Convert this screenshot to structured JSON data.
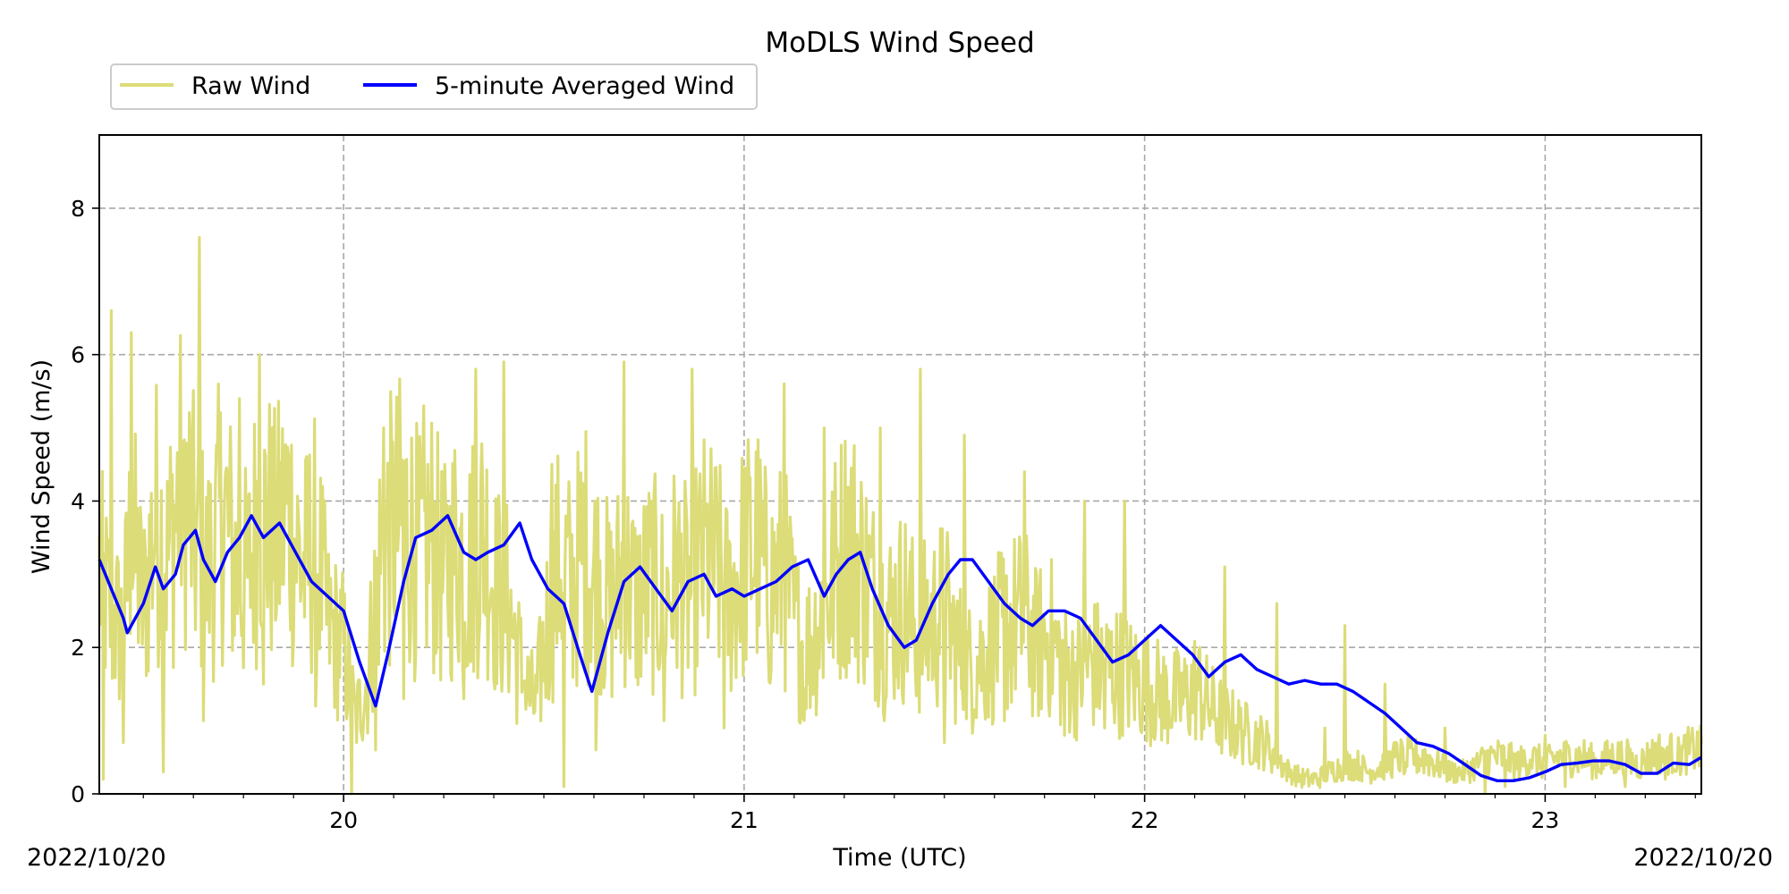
{
  "chart_data": {
    "type": "line",
    "title": "MoDLS Wind Speed",
    "xlabel": "Time (UTC)",
    "ylabel": "Wind Speed (m/s)",
    "xlim": [
      19.39,
      23.39
    ],
    "ylim": [
      0,
      9
    ],
    "x_ticks": [
      20,
      21,
      22,
      23
    ],
    "x_tick_labels": [
      "20",
      "21",
      "22",
      "23"
    ],
    "y_ticks": [
      0,
      2,
      4,
      6,
      8
    ],
    "y_tick_labels": [
      "0",
      "2",
      "4",
      "6",
      "8"
    ],
    "date_left": "2022/10/20",
    "date_right": "2022/10/20",
    "grid": true,
    "legend_position": "top-left",
    "series": [
      {
        "name": "Raw Wind",
        "color": "#DCDC78",
        "x": [
          19.39,
          19.42,
          19.45,
          19.47,
          19.5,
          19.53,
          19.56,
          19.6,
          19.63,
          19.66,
          19.7,
          19.73,
          19.76,
          19.79,
          19.83,
          19.86,
          19.9,
          19.93,
          19.96,
          20.0,
          20.03,
          20.06,
          20.09,
          20.12,
          20.15,
          20.19,
          20.22,
          20.25,
          20.28,
          20.31,
          20.35,
          20.38,
          20.41,
          20.45,
          20.48,
          20.51,
          20.54,
          20.57,
          20.6,
          20.63,
          20.67,
          20.7,
          20.73,
          20.77,
          20.8,
          20.83,
          20.86,
          20.9,
          20.93,
          20.96,
          21.0,
          21.03,
          21.06,
          21.1,
          21.13,
          21.16,
          21.2,
          21.23,
          21.26,
          21.3,
          21.33,
          21.36,
          21.4,
          21.43,
          21.46,
          21.5,
          21.53,
          21.56,
          21.6,
          21.63,
          21.66,
          21.7,
          21.73,
          21.76,
          21.8,
          21.83,
          21.86,
          21.9,
          21.93,
          21.96,
          22.0,
          22.03,
          22.06,
          22.1,
          22.13,
          22.16,
          22.2,
          22.23,
          22.26,
          22.3,
          22.33,
          22.36,
          22.4,
          22.43,
          22.46,
          22.5,
          22.53,
          22.56,
          22.6,
          22.63,
          22.66,
          22.7,
          22.73,
          22.76,
          22.8,
          22.83,
          22.86,
          22.9,
          22.93,
          22.96,
          23.0,
          23.03,
          23.06,
          23.1,
          23.13,
          23.16,
          23.2,
          23.23,
          23.26,
          23.3,
          23.33,
          23.36,
          23.39
        ],
        "values": [
          3.0,
          2.4,
          2.2,
          3.6,
          2.5,
          3.8,
          3.2,
          4.4,
          3.4,
          3.0,
          3.9,
          3.1,
          2.9,
          4.0,
          3.4,
          3.9,
          3.0,
          3.5,
          2.3,
          2.0,
          1.0,
          1.6,
          3.2,
          3.6,
          3.8,
          3.2,
          3.5,
          2.9,
          3.4,
          3.1,
          3.6,
          2.8,
          2.6,
          1.5,
          1.2,
          2.4,
          3.2,
          2.8,
          3.4,
          3.0,
          2.5,
          3.1,
          2.6,
          2.9,
          2.6,
          3.0,
          2.7,
          3.2,
          3.1,
          2.6,
          3.2,
          3.4,
          2.8,
          3.0,
          2.2,
          2.0,
          2.5,
          3.1,
          3.5,
          3.0,
          2.6,
          2.4,
          2.6,
          2.2,
          2.3,
          2.5,
          2.0,
          1.7,
          1.9,
          2.1,
          2.3,
          2.4,
          2.0,
          2.2,
          1.7,
          1.6,
          1.8,
          1.7,
          1.7,
          1.6,
          1.5,
          1.4,
          1.3,
          1.3,
          1.5,
          1.2,
          1.0,
          0.9,
          0.8,
          0.7,
          0.5,
          0.3,
          0.2,
          0.2,
          0.3,
          0.4,
          0.4,
          0.3,
          0.4,
          0.5,
          0.5,
          0.5,
          0.4,
          0.3,
          0.3,
          0.4,
          0.5,
          0.5,
          0.4,
          0.5,
          0.4,
          0.5,
          0.5,
          0.5,
          0.4,
          0.5,
          0.5,
          0.4,
          0.5,
          0.6,
          0.5,
          0.6,
          0.6
        ],
        "peaks": [
          [
            19.42,
            6.6
          ],
          [
            19.47,
            6.3
          ],
          [
            19.6,
            4.8
          ],
          [
            19.64,
            7.6
          ],
          [
            19.74,
            5.4
          ],
          [
            19.79,
            6.0
          ],
          [
            20.1,
            5.0
          ],
          [
            20.2,
            5.3
          ],
          [
            20.33,
            5.8
          ],
          [
            20.4,
            5.9
          ],
          [
            20.52,
            4.5
          ],
          [
            20.7,
            5.9
          ],
          [
            20.87,
            5.8
          ],
          [
            21.1,
            5.6
          ],
          [
            21.2,
            5.0
          ],
          [
            21.34,
            5.0
          ],
          [
            21.44,
            5.8
          ],
          [
            21.55,
            4.9
          ],
          [
            21.7,
            4.4
          ],
          [
            21.85,
            4.0
          ],
          [
            21.95,
            4.0
          ],
          [
            22.05,
            3.4
          ],
          [
            22.2,
            3.1
          ],
          [
            22.33,
            2.6
          ],
          [
            22.5,
            2.3
          ],
          [
            22.6,
            1.5
          ],
          [
            22.75,
            0.9
          ],
          [
            22.85,
            0.7
          ],
          [
            23.0,
            0.8
          ],
          [
            23.2,
            0.7
          ],
          [
            23.35,
            0.8
          ]
        ],
        "troughs": [
          [
            19.4,
            0.2
          ],
          [
            19.45,
            0.7
          ],
          [
            19.55,
            0.3
          ],
          [
            19.65,
            1.0
          ],
          [
            19.8,
            1.5
          ],
          [
            19.93,
            1.2
          ],
          [
            20.02,
            0.0
          ],
          [
            20.08,
            0.6
          ],
          [
            20.15,
            1.3
          ],
          [
            20.3,
            1.3
          ],
          [
            20.45,
            1.5
          ],
          [
            20.55,
            0.1
          ],
          [
            20.63,
            0.6
          ],
          [
            20.8,
            1.0
          ],
          [
            20.95,
            0.9
          ],
          [
            21.15,
            1.0
          ],
          [
            21.35,
            1.0
          ],
          [
            21.5,
            0.7
          ],
          [
            21.65,
            1.0
          ],
          [
            21.8,
            0.8
          ],
          [
            21.9,
            0.9
          ],
          [
            22.05,
            0.9
          ],
          [
            22.25,
            0.8
          ],
          [
            22.45,
            0.9
          ],
          [
            22.65,
            0.3
          ],
          [
            22.85,
            0.0
          ],
          [
            22.9,
            0.1
          ],
          [
            23.05,
            0.1
          ],
          [
            23.2,
            0.1
          ],
          [
            23.3,
            0.2
          ]
        ]
      },
      {
        "name": "5-minute Averaged Wind",
        "color": "#0000FF",
        "x": [
          19.39,
          19.42,
          19.45,
          19.46,
          19.5,
          19.53,
          19.55,
          19.58,
          19.6,
          19.63,
          19.65,
          19.68,
          19.71,
          19.74,
          19.77,
          19.8,
          19.84,
          19.88,
          19.92,
          19.96,
          20.0,
          20.04,
          20.08,
          20.11,
          20.15,
          20.18,
          20.22,
          20.26,
          20.3,
          20.33,
          20.36,
          20.4,
          20.44,
          20.47,
          20.51,
          20.55,
          20.59,
          20.62,
          20.66,
          20.7,
          20.74,
          20.78,
          20.82,
          20.86,
          20.9,
          20.93,
          20.97,
          21.0,
          21.04,
          21.08,
          21.12,
          21.16,
          21.2,
          21.23,
          21.26,
          21.29,
          21.32,
          21.36,
          21.4,
          21.43,
          21.47,
          21.51,
          21.54,
          21.57,
          21.61,
          21.65,
          21.69,
          21.72,
          21.76,
          21.8,
          21.84,
          21.88,
          21.92,
          21.96,
          22.0,
          22.04,
          22.08,
          22.12,
          22.16,
          22.2,
          22.24,
          22.28,
          22.32,
          22.36,
          22.4,
          22.44,
          22.48,
          22.52,
          22.56,
          22.6,
          22.64,
          22.68,
          22.72,
          22.76,
          22.8,
          22.84,
          22.88,
          22.92,
          22.96,
          23.0,
          23.04,
          23.08,
          23.12,
          23.16,
          23.2,
          23.24,
          23.28,
          23.32,
          23.36,
          23.39
        ],
        "values": [
          3.2,
          2.8,
          2.4,
          2.2,
          2.6,
          3.1,
          2.8,
          3.0,
          3.4,
          3.6,
          3.2,
          2.9,
          3.3,
          3.5,
          3.8,
          3.5,
          3.7,
          3.3,
          2.9,
          2.7,
          2.5,
          1.8,
          1.2,
          1.9,
          2.9,
          3.5,
          3.6,
          3.8,
          3.3,
          3.2,
          3.3,
          3.4,
          3.7,
          3.2,
          2.8,
          2.6,
          1.9,
          1.4,
          2.2,
          2.9,
          3.1,
          2.8,
          2.5,
          2.9,
          3.0,
          2.7,
          2.8,
          2.7,
          2.8,
          2.9,
          3.1,
          3.2,
          2.7,
          3.0,
          3.2,
          3.3,
          2.8,
          2.3,
          2.0,
          2.1,
          2.6,
          3.0,
          3.2,
          3.2,
          2.9,
          2.6,
          2.4,
          2.3,
          2.5,
          2.5,
          2.4,
          2.1,
          1.8,
          1.9,
          2.1,
          2.3,
          2.1,
          1.9,
          1.6,
          1.8,
          1.9,
          1.7,
          1.6,
          1.5,
          1.55,
          1.5,
          1.5,
          1.4,
          1.25,
          1.1,
          0.9,
          0.7,
          0.65,
          0.55,
          0.4,
          0.25,
          0.18,
          0.18,
          0.22,
          0.3,
          0.4,
          0.42,
          0.45,
          0.45,
          0.4,
          0.28,
          0.28,
          0.42,
          0.4,
          0.5
        ]
      }
    ]
  }
}
